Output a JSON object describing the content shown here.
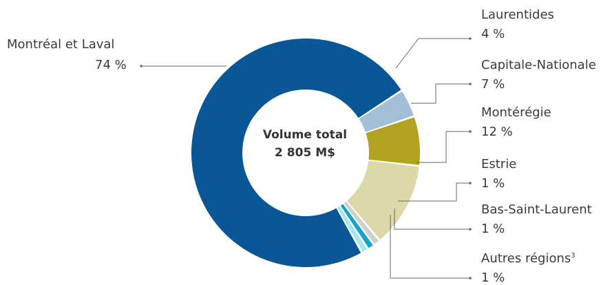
{
  "chart_data": {
    "type": "pie",
    "title": "",
    "center_label": {
      "line1": "Volume total",
      "line2": "2 805 M$"
    },
    "slices": [
      {
        "name": "Laurentides",
        "value": 4,
        "value_label": "4 %",
        "color": "#a3bfd8"
      },
      {
        "name": "Capitale-Nationale",
        "value": 7,
        "value_label": "7 %",
        "color": "#b3a21f"
      },
      {
        "name": "Montérégie",
        "value": 12,
        "value_label": "12 %",
        "color": "#ddd8a8"
      },
      {
        "name": "Estrie",
        "value": 1,
        "value_label": "1 %",
        "color": "#cfcfcf"
      },
      {
        "name": "Bas-Saint-Laurent",
        "value": 1,
        "value_label": "1 %",
        "color": "#16a3c4"
      },
      {
        "name": "Autres régions",
        "name_sup": "3",
        "value": 1,
        "value_label": "1 %",
        "color": "#a6e6f0"
      },
      {
        "name": "Montréal et Laval",
        "value": 74,
        "value_label": "74 %",
        "color": "#0a5797"
      }
    ]
  }
}
